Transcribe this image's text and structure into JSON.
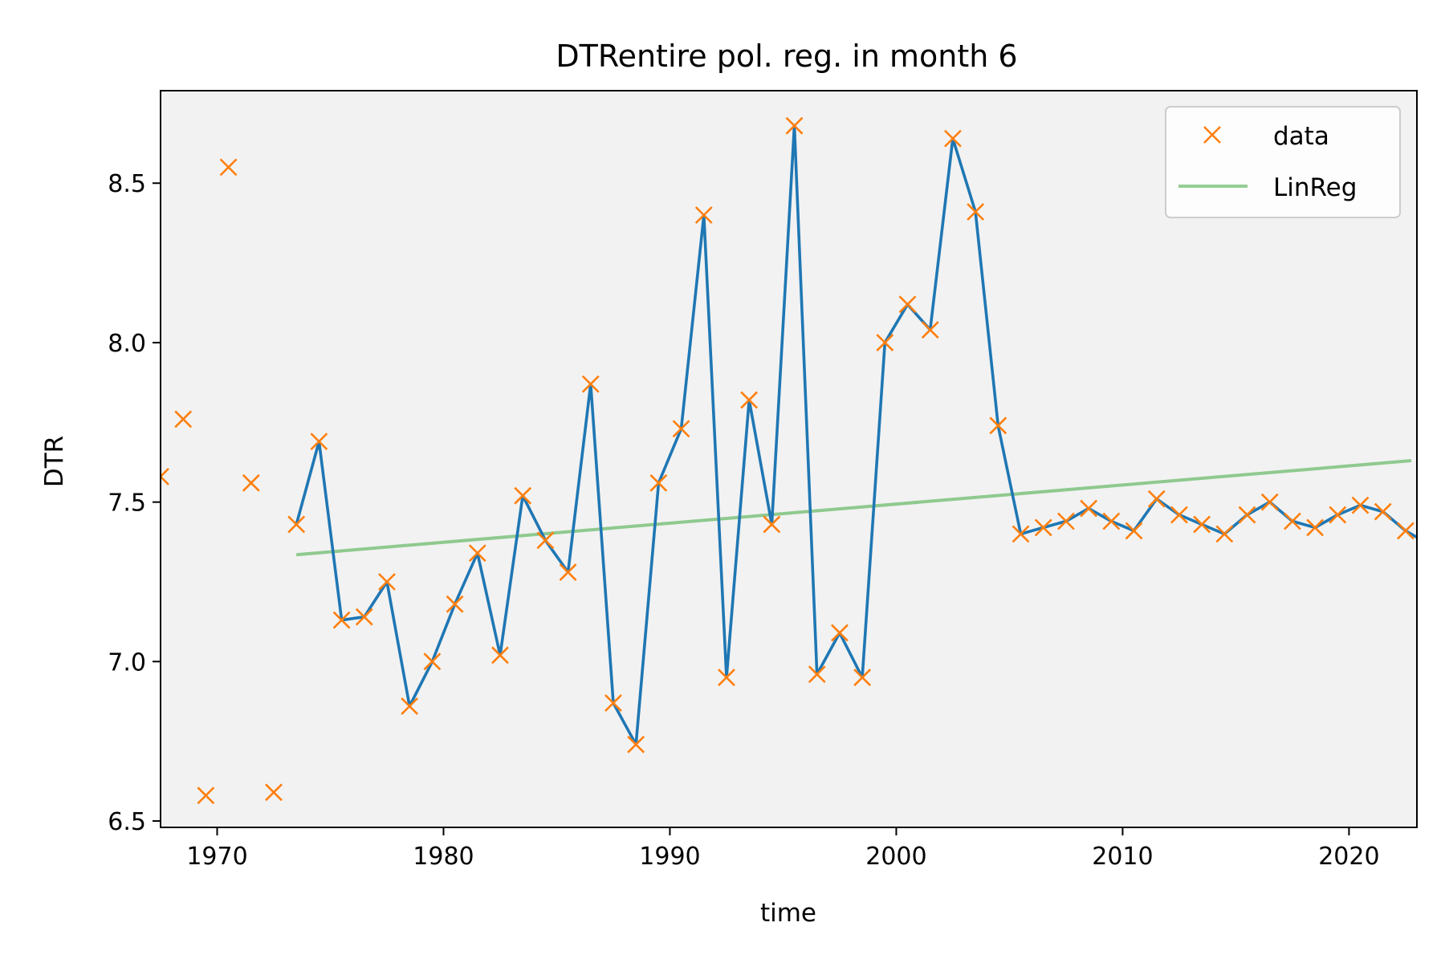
{
  "chart_data": {
    "type": "line",
    "title": "DTRentire pol. reg. in month 6",
    "xlabel": "time",
    "ylabel": "DTR",
    "xlim": [
      1967.5,
      2023
    ],
    "ylim": [
      6.48,
      8.79
    ],
    "xticks": [
      1970,
      1980,
      1990,
      2000,
      2010,
      2020
    ],
    "yticks": [
      6.5,
      7.0,
      7.5,
      8.0,
      8.5
    ],
    "xtick_labels": [
      "1970",
      "1980",
      "1990",
      "2000",
      "2010",
      "2020"
    ],
    "ytick_labels": [
      "6.5",
      "7.0",
      "7.5",
      "8.0",
      "8.5"
    ],
    "legend": {
      "position": "upper-right",
      "entries": [
        "data",
        "LinReg"
      ]
    },
    "colors": {
      "data": "#ff7f0e",
      "line": "#1f77b4",
      "linreg": "#2ca02c",
      "plot_bg": "#f2f2f2"
    },
    "series": [
      {
        "name": "data",
        "style": "markers",
        "x": [
          1967.5,
          1968.5,
          1969.5,
          1970.5,
          1971.5,
          1972.5,
          1973.5,
          1974.5,
          1975.5,
          1976.5,
          1977.5,
          1978.5,
          1979.5,
          1980.5,
          1981.5,
          1982.5,
          1983.5,
          1984.5,
          1985.5,
          1986.5,
          1987.5,
          1988.5,
          1989.5,
          1990.5,
          1991.5,
          1992.5,
          1993.5,
          1994.5,
          1995.5,
          1996.5,
          1997.5,
          1998.5,
          1999.5,
          2000.5,
          2001.5,
          2002.5,
          2003.5,
          2004.5,
          2005.5,
          2006.5,
          2007.5,
          2008.5,
          2009.5,
          2010.5,
          2011.5,
          2012.5,
          2013.5,
          2014.5,
          2015.5,
          2016.5,
          2017.5,
          2018.5,
          2019.5,
          2020.5,
          2021.5,
          2022.5
        ],
        "y": [
          7.58,
          7.76,
          6.58,
          8.55,
          7.56,
          6.59,
          7.43,
          7.69,
          7.13,
          7.14,
          7.25,
          6.86,
          7.0,
          7.18,
          7.34,
          7.02,
          7.52,
          7.38,
          7.28,
          7.87,
          6.87,
          6.74,
          7.56,
          7.73,
          8.4,
          6.95,
          7.82,
          7.43,
          8.68,
          6.96,
          7.09,
          6.95,
          8.0,
          8.12,
          8.04,
          8.64,
          8.41,
          7.74,
          7.4,
          7.42,
          7.44,
          7.48,
          7.44,
          7.41,
          7.51,
          7.46,
          7.43,
          7.4,
          7.46,
          7.5,
          7.44,
          7.42,
          7.46,
          7.49,
          7.47,
          7.41
        ]
      },
      {
        "name": "line",
        "style": "line",
        "x": [
          1973.5,
          1974.5,
          1975.5,
          1976.5,
          1977.5,
          1978.5,
          1979.5,
          1980.5,
          1981.5,
          1982.5,
          1983.5,
          1984.5,
          1985.5,
          1986.5,
          1987.5,
          1988.5,
          1989.5,
          1990.5,
          1991.5,
          1992.5,
          1993.5,
          1994.5,
          1995.5,
          1996.5,
          1997.5,
          1998.5,
          1999.5,
          2000.5,
          2001.5,
          2002.5,
          2003.5,
          2004.5,
          2005.5,
          2006.5,
          2007.5,
          2008.5,
          2009.5,
          2010.5,
          2011.5,
          2012.5,
          2013.5,
          2014.5,
          2015.5,
          2016.5,
          2017.5,
          2018.5,
          2019.5,
          2020.5,
          2021.5,
          2022.5,
          2023.0
        ],
        "y": [
          7.43,
          7.69,
          7.13,
          7.14,
          7.25,
          6.86,
          7.0,
          7.18,
          7.34,
          7.02,
          7.52,
          7.38,
          7.28,
          7.87,
          6.87,
          6.74,
          7.56,
          7.73,
          8.4,
          6.95,
          7.82,
          7.43,
          8.68,
          6.96,
          7.09,
          6.95,
          8.0,
          8.12,
          8.04,
          8.64,
          8.41,
          7.74,
          7.4,
          7.42,
          7.44,
          7.48,
          7.44,
          7.41,
          7.51,
          7.46,
          7.43,
          7.4,
          7.46,
          7.5,
          7.44,
          7.42,
          7.46,
          7.49,
          7.47,
          7.41,
          7.39
        ]
      },
      {
        "name": "LinReg",
        "style": "line",
        "x": [
          1973.5,
          2022.75
        ],
        "y": [
          7.335,
          7.63
        ]
      }
    ]
  }
}
